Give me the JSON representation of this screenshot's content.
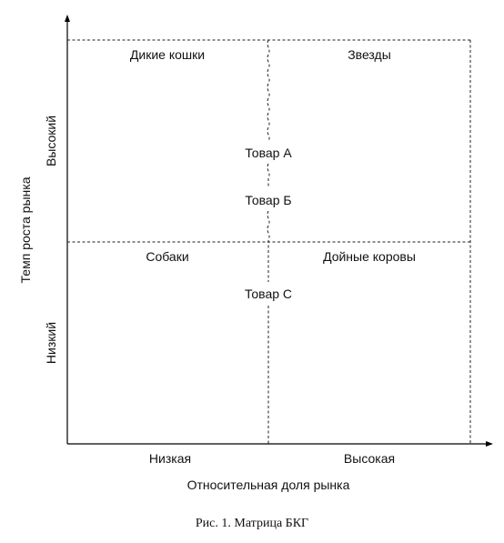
{
  "diagram": {
    "quadrants": {
      "top_left": "Дикие кошки",
      "top_right": "Звезды",
      "bottom_left": "Собаки",
      "bottom_right": "Дойные коровы"
    },
    "products": [
      "Товар А",
      "Товар Б",
      "Товар С"
    ],
    "y_axis": {
      "label": "Темп роста рынка",
      "high": "Высокий",
      "low": "Низкий"
    },
    "x_axis": {
      "label": "Относительная доля рынка",
      "low": "Низкая",
      "high": "Высокая"
    },
    "caption": "Рис. 1. Матрица БКГ"
  }
}
